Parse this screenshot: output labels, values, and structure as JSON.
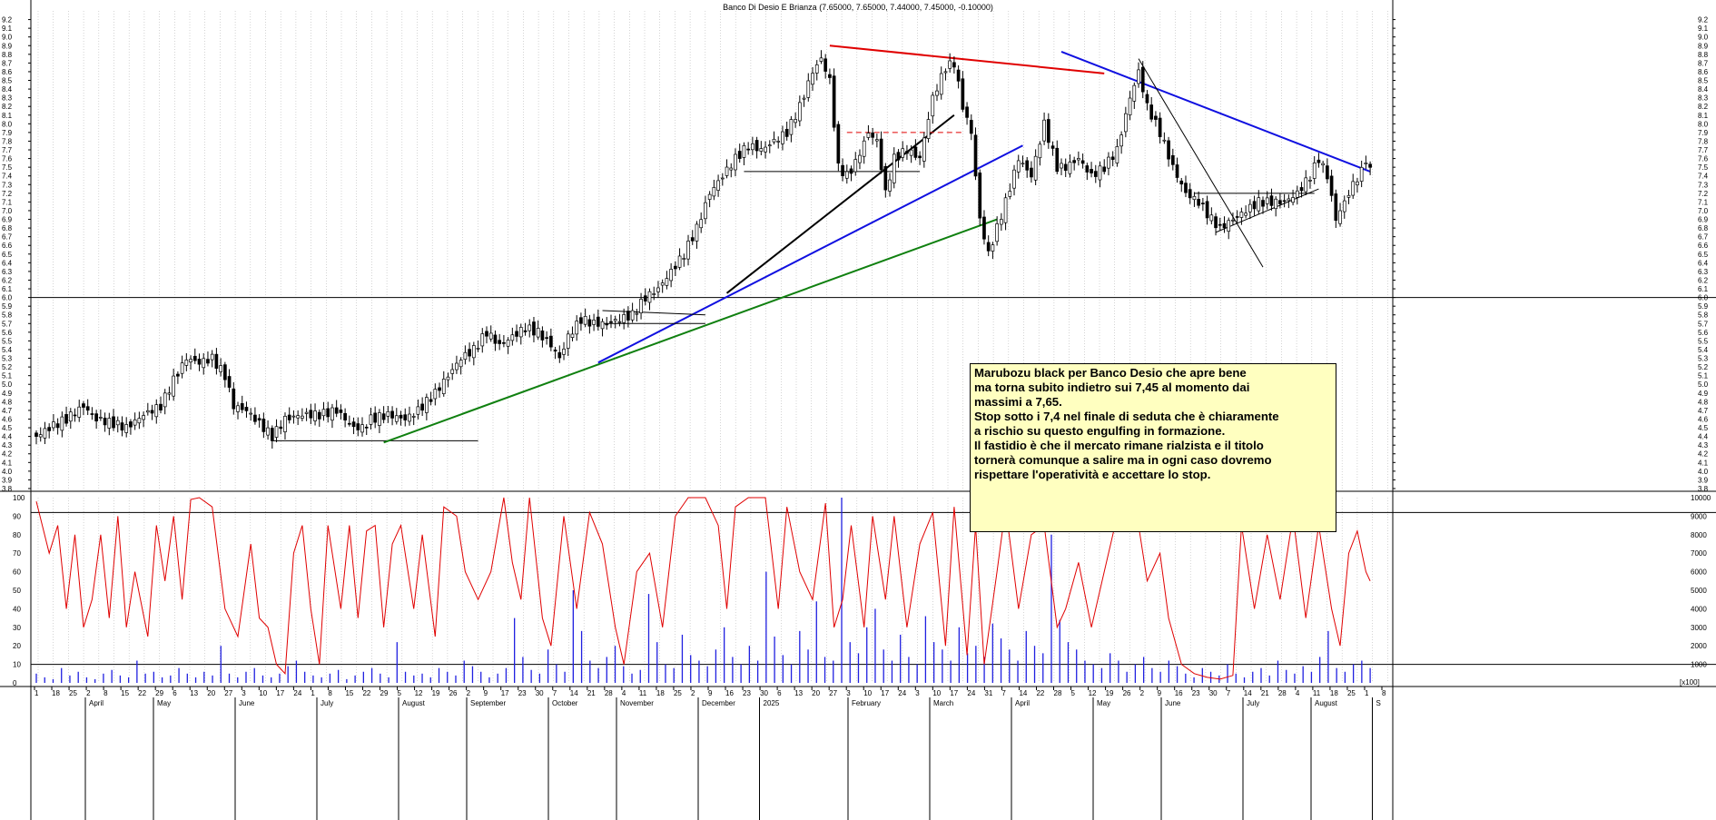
{
  "chart_data": [
    {
      "type": "candlestick",
      "title": "Banco Di Desio E Brianza (7.65000, 7.65000, 7.44000, 7.45000, -0.10000)",
      "ylim": [
        3.8,
        9.3
      ],
      "y_ticks": [
        "3.8",
        "3.9",
        "4.0",
        "4.1",
        "4.2",
        "4.3",
        "4.4",
        "4.5",
        "4.6",
        "4.7",
        "4.8",
        "4.9",
        "5.0",
        "5.1",
        "5.2",
        "5.3",
        "5.4",
        "5.5",
        "5.6",
        "5.7",
        "5.8",
        "5.9",
        "6.0",
        "6.1",
        "6.2",
        "6.3",
        "6.4",
        "6.5",
        "6.6",
        "6.7",
        "6.8",
        "6.9",
        "7.0",
        "7.1",
        "7.2",
        "7.3",
        "7.4",
        "7.5",
        "7.6",
        "7.7",
        "7.8",
        "7.9",
        "8.0",
        "8.1",
        "8.2",
        "8.3",
        "8.4",
        "8.5",
        "8.6",
        "8.7",
        "8.8",
        "8.9",
        "9.0",
        "9.1",
        "9.2"
      ],
      "x_day_labels": [
        "1",
        "18",
        "25",
        "2",
        "8",
        "15",
        "22",
        "29",
        "6",
        "13",
        "20",
        "27",
        "3",
        "10",
        "17",
        "24",
        "1",
        "8",
        "15",
        "22",
        "29",
        "5",
        "12",
        "19",
        "26",
        "2",
        "9",
        "17",
        "23",
        "30",
        "7",
        "14",
        "21",
        "28",
        "4",
        "11",
        "18",
        "25",
        "2",
        "9",
        "16",
        "23",
        "30",
        "6",
        "13",
        "20",
        "27",
        "3",
        "10",
        "17",
        "24",
        "3",
        "10",
        "17",
        "24",
        "31",
        "7",
        "14",
        "22",
        "28",
        "5",
        "12",
        "19",
        "26",
        "2",
        "9",
        "16",
        "23",
        "30",
        "7",
        "14",
        "21",
        "28",
        "4",
        "11",
        "18",
        "25",
        "1",
        "8"
      ],
      "x_month_labels": [
        "April",
        "May",
        "June",
        "July",
        "August",
        "September",
        "October",
        "November",
        "December",
        "2025",
        "February",
        "March",
        "April",
        "May",
        "June",
        "July",
        "August",
        "S"
      ],
      "horizontal_lines": [
        6.0
      ],
      "annotation": [
        "Marubozu black per Banco Desio che apre bene",
        "ma torna subito indietro sui 7,45 al momento dai",
        "massimi a 7,65.",
        "Stop sotto i 7,4 nel finale di seduta che è chiaramente",
        "a rischio su questo engulfing in formazione.",
        "Il fastidio è che il mercato rimane rialzista e il titolo",
        "tornerà comunque a salire ma in ogni caso dovremo",
        "rispettare l'operatività e accettare lo stop."
      ],
      "close_path": [
        [
          0,
          4.4
        ],
        [
          6,
          4.5
        ],
        [
          14,
          4.6
        ],
        [
          22,
          4.75
        ],
        [
          28,
          4.6
        ],
        [
          36,
          4.55
        ],
        [
          42,
          4.5
        ],
        [
          50,
          4.65
        ],
        [
          58,
          4.75
        ],
        [
          64,
          5.05
        ],
        [
          70,
          5.3
        ],
        [
          76,
          5.25
        ],
        [
          82,
          5.3
        ],
        [
          88,
          5.1
        ],
        [
          92,
          4.75
        ],
        [
          98,
          4.7
        ],
        [
          104,
          4.55
        ],
        [
          110,
          4.4
        ],
        [
          116,
          4.6
        ],
        [
          124,
          4.65
        ],
        [
          132,
          4.65
        ],
        [
          140,
          4.7
        ],
        [
          148,
          4.5
        ],
        [
          152,
          4.5
        ],
        [
          156,
          4.6
        ],
        [
          164,
          4.65
        ],
        [
          172,
          4.6
        ],
        [
          178,
          4.7
        ],
        [
          186,
          4.9
        ],
        [
          192,
          5.1
        ],
        [
          198,
          5.3
        ],
        [
          204,
          5.4
        ],
        [
          210,
          5.6
        ],
        [
          216,
          5.45
        ],
        [
          222,
          5.55
        ],
        [
          228,
          5.65
        ],
        [
          234,
          5.6
        ],
        [
          240,
          5.45
        ],
        [
          244,
          5.3
        ],
        [
          248,
          5.55
        ],
        [
          254,
          5.75
        ],
        [
          260,
          5.7
        ],
        [
          266,
          5.7
        ],
        [
          272,
          5.75
        ],
        [
          278,
          5.8
        ],
        [
          284,
          6.0
        ],
        [
          290,
          6.1
        ],
        [
          296,
          6.3
        ],
        [
          302,
          6.5
        ],
        [
          308,
          6.8
        ],
        [
          314,
          7.2
        ],
        [
          320,
          7.4
        ],
        [
          326,
          7.6
        ],
        [
          332,
          7.75
        ],
        [
          338,
          7.7
        ],
        [
          344,
          7.8
        ],
        [
          350,
          7.9
        ],
        [
          356,
          8.2
        ],
        [
          362,
          8.6
        ],
        [
          366,
          8.75
        ],
        [
          370,
          8.5
        ],
        [
          374,
          7.5
        ],
        [
          378,
          7.4
        ],
        [
          382,
          7.55
        ],
        [
          388,
          7.9
        ],
        [
          392,
          7.8
        ],
        [
          396,
          7.2
        ],
        [
          400,
          7.6
        ],
        [
          406,
          7.7
        ],
        [
          412,
          7.6
        ],
        [
          418,
          8.3
        ],
        [
          424,
          8.65
        ],
        [
          428,
          8.7
        ],
        [
          432,
          8.2
        ],
        [
          436,
          7.9
        ],
        [
          440,
          6.9
        ],
        [
          444,
          6.5
        ],
        [
          448,
          6.8
        ],
        [
          452,
          7.1
        ],
        [
          458,
          7.6
        ],
        [
          464,
          7.4
        ],
        [
          470,
          8.0
        ],
        [
          476,
          7.5
        ],
        [
          480,
          7.5
        ],
        [
          486,
          7.6
        ],
        [
          492,
          7.4
        ],
        [
          498,
          7.5
        ],
        [
          504,
          7.7
        ],
        [
          510,
          8.3
        ],
        [
          514,
          8.6
        ],
        [
          518,
          8.2
        ],
        [
          524,
          7.9
        ],
        [
          530,
          7.5
        ],
        [
          536,
          7.2
        ],
        [
          542,
          7.1
        ],
        [
          548,
          6.9
        ],
        [
          552,
          6.8
        ],
        [
          558,
          6.9
        ],
        [
          564,
          7.0
        ],
        [
          570,
          7.1
        ],
        [
          576,
          7.1
        ],
        [
          582,
          7.1
        ],
        [
          588,
          7.2
        ],
        [
          594,
          7.4
        ],
        [
          598,
          7.6
        ],
        [
          602,
          7.4
        ],
        [
          606,
          6.9
        ],
        [
          610,
          7.1
        ],
        [
          614,
          7.3
        ],
        [
          618,
          7.45
        ],
        [
          620,
          7.6
        ],
        [
          622,
          7.45
        ]
      ]
    },
    {
      "type": "line+bar",
      "ylim": [
        0,
        100
      ],
      "y_ticks_left": [
        "0",
        "10",
        "20",
        "30",
        "40",
        "50",
        "60",
        "70",
        "80",
        "90",
        "100"
      ],
      "y_ticks_right": [
        "1000",
        "2000",
        "3000",
        "4000",
        "5000",
        "6000",
        "7000",
        "8000",
        "9000",
        "10000"
      ],
      "right_unit_label": "x100",
      "horizontal_lines": [
        10,
        92
      ],
      "oscillator_path": [
        [
          0,
          98
        ],
        [
          6,
          70
        ],
        [
          10,
          85
        ],
        [
          14,
          40
        ],
        [
          18,
          80
        ],
        [
          22,
          30
        ],
        [
          26,
          45
        ],
        [
          30,
          80
        ],
        [
          34,
          35
        ],
        [
          38,
          90
        ],
        [
          42,
          30
        ],
        [
          46,
          60
        ],
        [
          52,
          25
        ],
        [
          56,
          85
        ],
        [
          60,
          55
        ],
        [
          64,
          90
        ],
        [
          68,
          45
        ],
        [
          72,
          99
        ],
        [
          76,
          100
        ],
        [
          82,
          95
        ],
        [
          88,
          40
        ],
        [
          94,
          25
        ],
        [
          100,
          75
        ],
        [
          104,
          35
        ],
        [
          108,
          30
        ],
        [
          112,
          10
        ],
        [
          116,
          5
        ],
        [
          120,
          70
        ],
        [
          124,
          85
        ],
        [
          128,
          40
        ],
        [
          132,
          10
        ],
        [
          136,
          85
        ],
        [
          142,
          40
        ],
        [
          146,
          85
        ],
        [
          150,
          35
        ],
        [
          154,
          82
        ],
        [
          158,
          85
        ],
        [
          162,
          30
        ],
        [
          166,
          75
        ],
        [
          170,
          85
        ],
        [
          176,
          40
        ],
        [
          180,
          80
        ],
        [
          186,
          25
        ],
        [
          190,
          95
        ],
        [
          196,
          90
        ],
        [
          200,
          60
        ],
        [
          206,
          45
        ],
        [
          212,
          60
        ],
        [
          218,
          100
        ],
        [
          222,
          65
        ],
        [
          226,
          45
        ],
        [
          230,
          100
        ],
        [
          236,
          35
        ],
        [
          240,
          20
        ],
        [
          246,
          90
        ],
        [
          252,
          40
        ],
        [
          258,
          92
        ],
        [
          264,
          75
        ],
        [
          270,
          30
        ],
        [
          274,
          10
        ],
        [
          280,
          60
        ],
        [
          286,
          70
        ],
        [
          292,
          30
        ],
        [
          298,
          90
        ],
        [
          304,
          100
        ],
        [
          312,
          100
        ],
        [
          318,
          85
        ],
        [
          322,
          40
        ],
        [
          326,
          95
        ],
        [
          332,
          100
        ],
        [
          340,
          100
        ],
        [
          346,
          40
        ],
        [
          350,
          95
        ],
        [
          356,
          60
        ],
        [
          362,
          45
        ],
        [
          368,
          97
        ],
        [
          372,
          30
        ],
        [
          376,
          45
        ],
        [
          380,
          85
        ],
        [
          386,
          30
        ],
        [
          390,
          90
        ],
        [
          396,
          45
        ],
        [
          400,
          90
        ],
        [
          406,
          30
        ],
        [
          412,
          75
        ],
        [
          418,
          92
        ],
        [
          424,
          20
        ],
        [
          428,
          95
        ],
        [
          434,
          15
        ],
        [
          438,
          85
        ],
        [
          442,
          10
        ],
        [
          448,
          60
        ],
        [
          452,
          95
        ],
        [
          458,
          40
        ],
        [
          464,
          80
        ],
        [
          470,
          85
        ],
        [
          476,
          30
        ],
        [
          480,
          40
        ],
        [
          486,
          65
        ],
        [
          492,
          30
        ],
        [
          498,
          60
        ],
        [
          504,
          90
        ],
        [
          510,
          100
        ],
        [
          514,
          85
        ],
        [
          518,
          55
        ],
        [
          524,
          70
        ],
        [
          528,
          35
        ],
        [
          534,
          10
        ],
        [
          540,
          5
        ],
        [
          546,
          3
        ],
        [
          552,
          2
        ],
        [
          558,
          4
        ],
        [
          562,
          85
        ],
        [
          568,
          40
        ],
        [
          574,
          80
        ],
        [
          580,
          45
        ],
        [
          586,
          90
        ],
        [
          592,
          35
        ],
        [
          598,
          85
        ],
        [
          604,
          40
        ],
        [
          608,
          20
        ],
        [
          612,
          70
        ],
        [
          616,
          82
        ],
        [
          620,
          60
        ],
        [
          622,
          55
        ]
      ],
      "volume_bars": [
        5,
        3,
        2,
        8,
        4,
        6,
        3,
        2,
        5,
        7,
        4,
        3,
        12,
        5,
        6,
        3,
        4,
        8,
        5,
        3,
        6,
        4,
        20,
        5,
        3,
        6,
        8,
        4,
        3,
        5,
        9,
        12,
        6,
        4,
        3,
        5,
        7,
        2,
        4,
        6,
        8,
        5,
        3,
        22,
        6,
        4,
        5,
        3,
        8,
        6,
        4,
        12,
        9,
        6,
        3,
        5,
        8,
        35,
        14,
        7,
        5,
        18,
        10,
        6,
        50,
        28,
        12,
        8,
        14,
        20,
        9,
        5,
        7,
        48,
        22,
        10,
        8,
        26,
        15,
        12,
        9,
        18,
        30,
        14,
        10,
        20,
        12,
        60,
        25,
        15,
        10,
        28,
        18,
        44,
        14,
        12,
        100,
        22,
        16,
        30,
        40,
        18,
        12,
        26,
        14,
        10,
        36,
        22,
        18,
        12,
        30,
        16,
        20,
        14,
        32,
        24,
        18,
        12,
        28,
        20,
        16,
        80,
        34,
        22,
        18,
        12,
        10,
        8,
        16,
        12,
        6,
        10,
        14,
        8,
        6,
        12,
        9,
        5,
        3,
        8,
        6,
        4,
        10,
        5,
        3,
        6,
        8,
        4,
        12,
        7,
        5,
        9,
        6,
        14,
        28,
        8,
        6,
        10,
        12,
        8
      ]
    }
  ]
}
